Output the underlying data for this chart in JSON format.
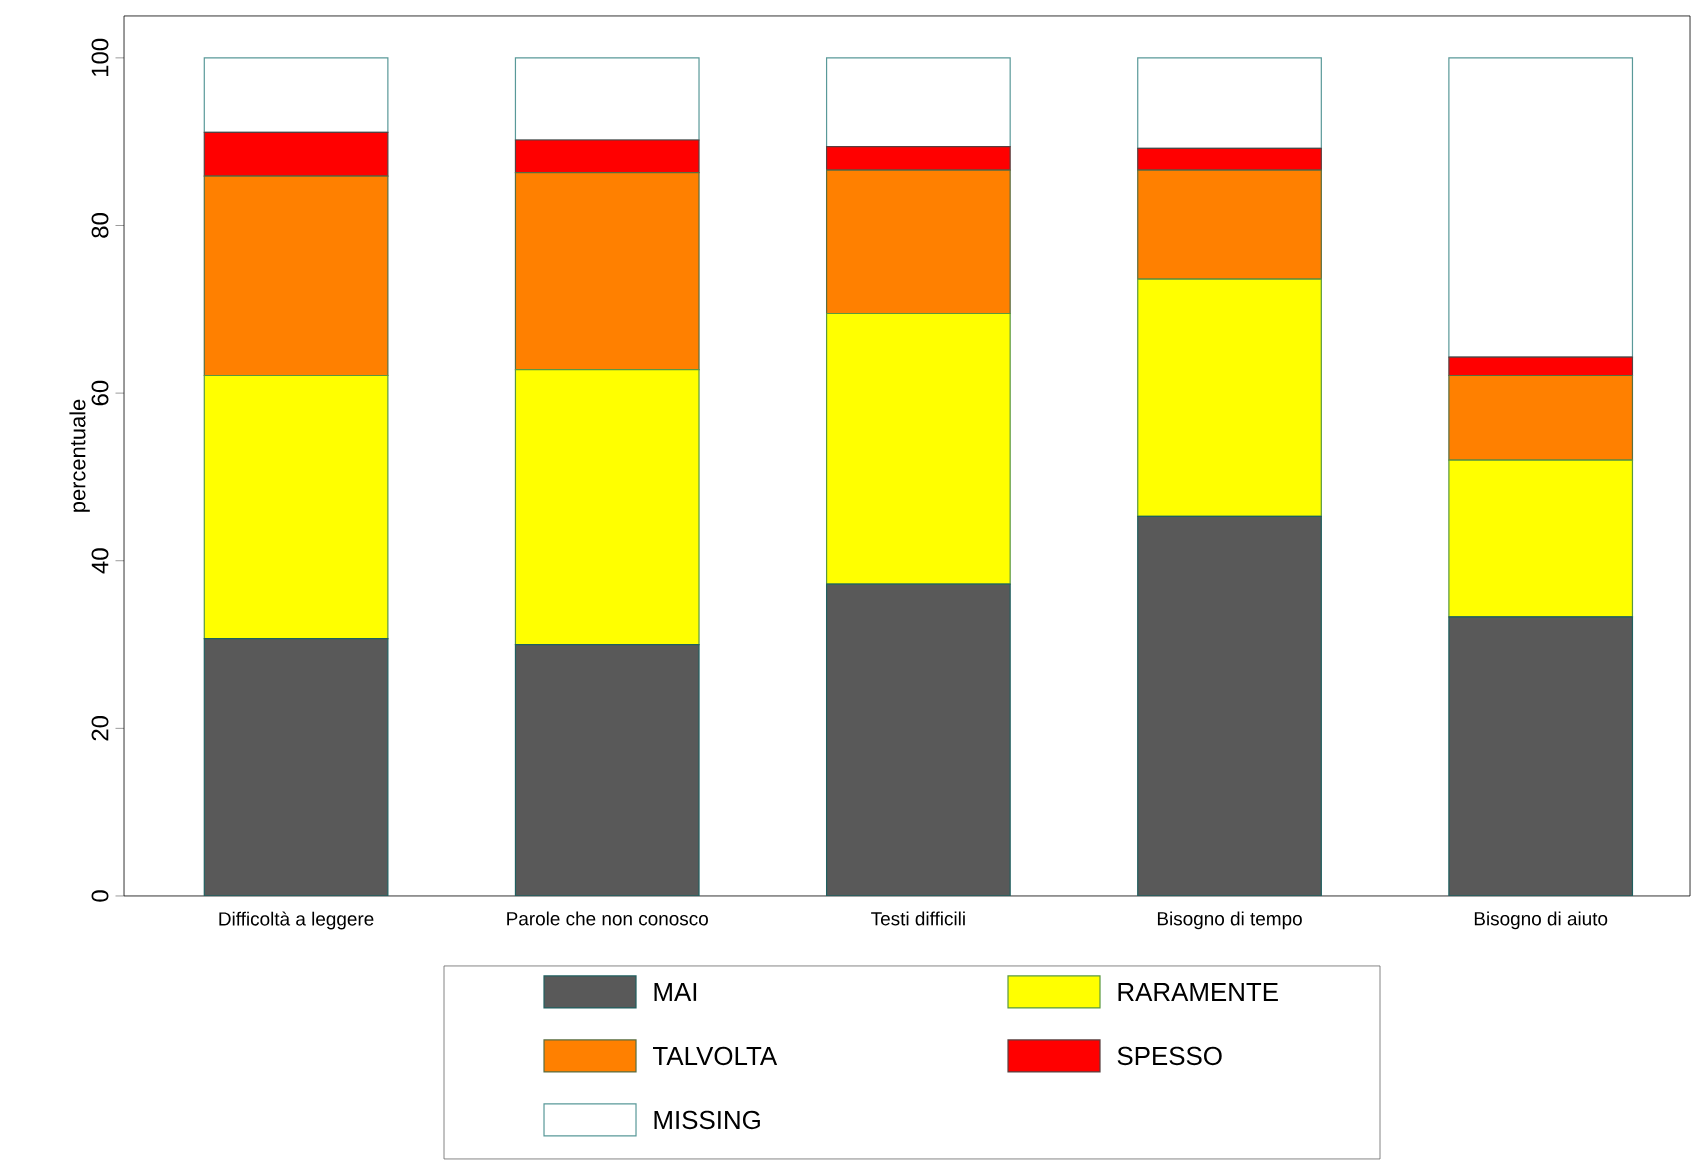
{
  "chart_data": {
    "type": "bar",
    "stacked": true,
    "ylabel": "percentuale",
    "categories": [
      "Difficoltà a leggere",
      "Parole che non conosco",
      "Testi difficili",
      "Bisogno di tempo",
      "Bisogno di aiuto"
    ],
    "series": [
      {
        "name": "MAI",
        "color": "#595959",
        "values": [
          30.7,
          30.0,
          37.2,
          45.3,
          33.3
        ]
      },
      {
        "name": "RARAMENTE",
        "color": "#ffff00",
        "values": [
          31.4,
          32.8,
          32.3,
          28.3,
          18.7
        ]
      },
      {
        "name": "TALVOLTA",
        "color": "#ff8000",
        "values": [
          23.8,
          23.5,
          17.1,
          13.0,
          10.1
        ]
      },
      {
        "name": "SPESSO",
        "color": "#ff0000",
        "values": [
          5.2,
          3.9,
          2.8,
          2.6,
          2.2
        ]
      },
      {
        "name": "MISSING",
        "color": "#ffffff",
        "values": [
          8.9,
          9.8,
          10.6,
          10.8,
          35.7
        ]
      }
    ],
    "ylim": [
      0,
      105
    ],
    "yticks": [
      0,
      20,
      40,
      60,
      80,
      100
    ],
    "grid": false,
    "legend": "bottom"
  }
}
